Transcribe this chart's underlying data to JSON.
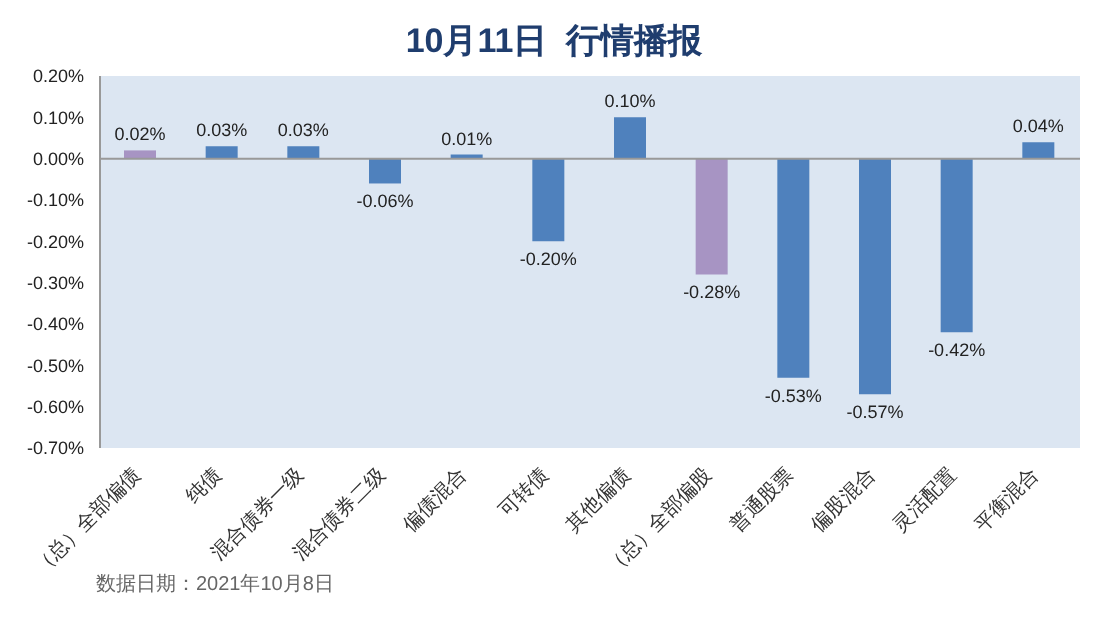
{
  "chart_data": {
    "type": "bar",
    "title": "10月11日  行情播报",
    "categories": [
      "（总）全部偏债",
      "纯债",
      "混合债券一级",
      "混合债券二级",
      "偏债混合",
      "可转债",
      "其他偏债",
      "（总）全部偏股",
      "普通股票",
      "偏股混合",
      "灵活配置",
      "平衡混合"
    ],
    "values": [
      0.02,
      0.03,
      0.03,
      -0.06,
      0.01,
      -0.2,
      0.1,
      -0.28,
      -0.53,
      -0.57,
      -0.42,
      0.04
    ],
    "colors": [
      "#a794c3",
      "#4f81bd",
      "#4f81bd",
      "#4f81bd",
      "#4f81bd",
      "#4f81bd",
      "#4f81bd",
      "#a794c3",
      "#4f81bd",
      "#4f81bd",
      "#4f81bd",
      "#4f81bd"
    ],
    "value_labels": [
      "0.02%",
      "0.03%",
      "0.03%",
      "-0.06%",
      "0.01%",
      "-0.20%",
      "0.10%",
      "-0.28%",
      "-0.53%",
      "-0.57%",
      "-0.42%",
      "0.04%"
    ],
    "ylim": [
      -0.7,
      0.2
    ],
    "yticks": [
      {
        "value": 0.2,
        "label": "0.20%"
      },
      {
        "value": 0.1,
        "label": "0.10%"
      },
      {
        "value": 0,
        "label": "0.00%"
      },
      {
        "value": -0.1,
        "label": "-0.10%"
      },
      {
        "value": -0.2,
        "label": "-0.20%"
      },
      {
        "value": -0.3,
        "label": "-0.30%"
      },
      {
        "value": -0.4,
        "label": "-0.40%"
      },
      {
        "value": -0.5,
        "label": "-0.50%"
      },
      {
        "value": -0.6,
        "label": "-0.60%"
      },
      {
        "value": -0.7,
        "label": "-0.70%"
      }
    ],
    "grid": false,
    "ref_lines": [
      {
        "axis": "y",
        "value": 0,
        "color": "#999999"
      }
    ],
    "legend": false,
    "annotations": [
      "数据日期：2021年10月8日"
    ]
  }
}
